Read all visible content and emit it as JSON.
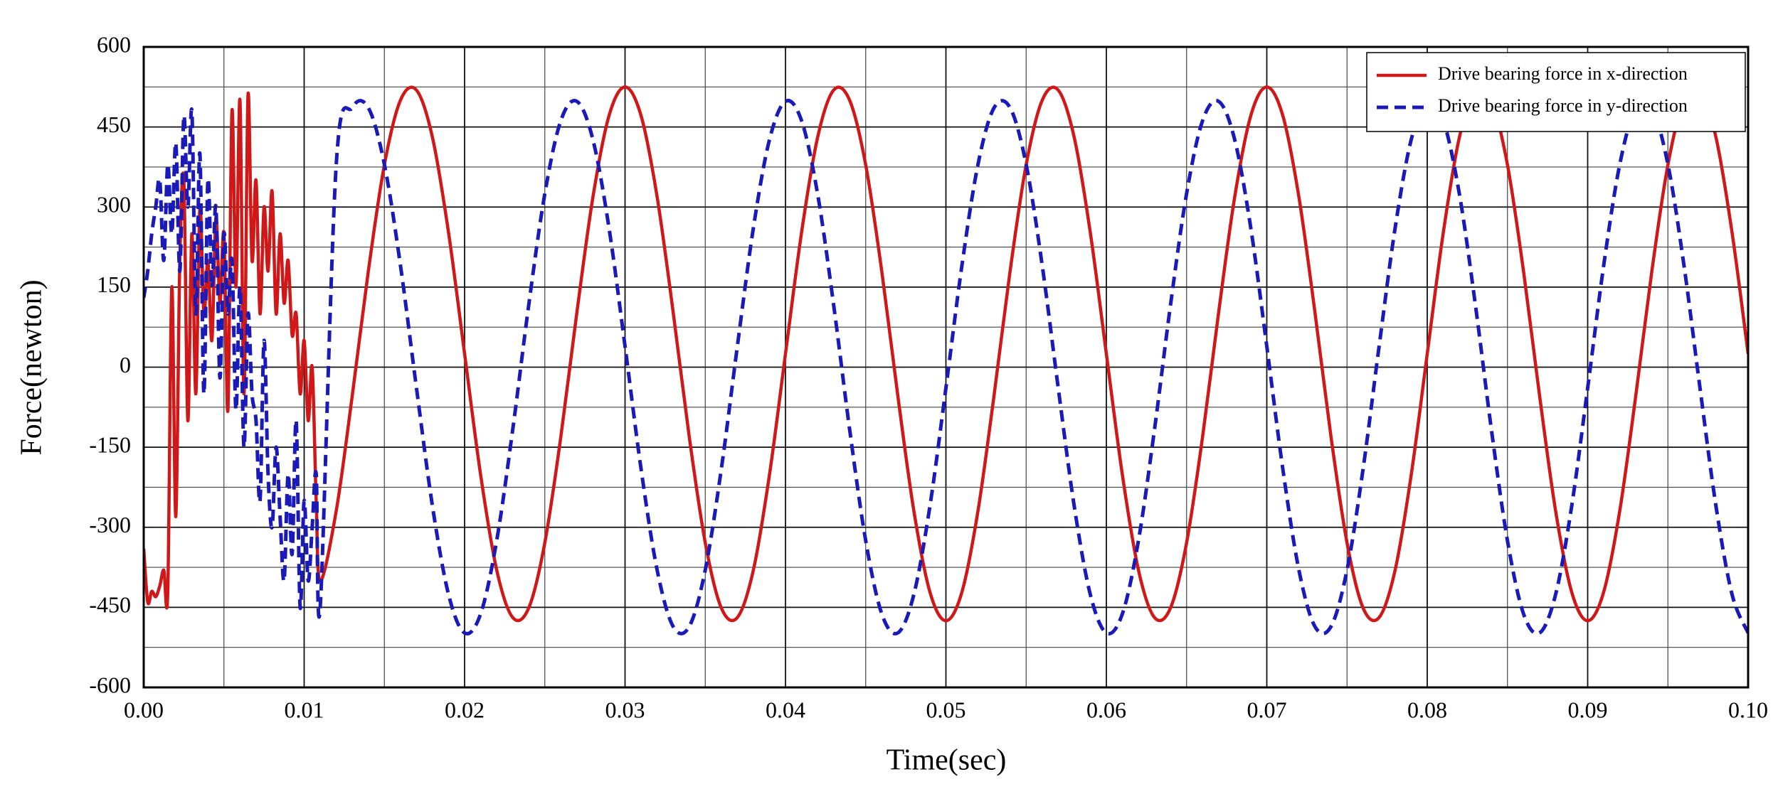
{
  "chart_data": {
    "type": "line",
    "xlabel": "Time(sec)",
    "ylabel": "Force(newton)",
    "x": [
      0,
      0.00025,
      0.0005,
      0.00075,
      0.001,
      0.00125,
      0.0015,
      0.00175,
      0.002,
      0.00225,
      0.0025,
      0.00275,
      0.003,
      0.00325,
      0.0035,
      0.00375,
      0.004,
      0.00425,
      0.0045,
      0.00475,
      0.005,
      0.00525,
      0.0055,
      0.00575,
      0.006,
      0.00625,
      0.0065,
      0.00675,
      0.007,
      0.00725,
      0.0075,
      0.00775,
      0.008,
      0.00825,
      0.0085,
      0.00875,
      0.009,
      0.00925,
      0.0095,
      0.00975,
      0.01,
      0.01025,
      0.0105,
      0.01075,
      0.011,
      0.012,
      0.013,
      0.014,
      0.015,
      0.016,
      0.017,
      0.018,
      0.019,
      0.02,
      0.021,
      0.022,
      0.023,
      0.024,
      0.025,
      0.026,
      0.027,
      0.028,
      0.029,
      0.03,
      0.031,
      0.032,
      0.033,
      0.034,
      0.035,
      0.036,
      0.037,
      0.038,
      0.039,
      0.04,
      0.041,
      0.042,
      0.043,
      0.044,
      0.045,
      0.046,
      0.047,
      0.048,
      0.049,
      0.05,
      0.051,
      0.052,
      0.053,
      0.054,
      0.055,
      0.056,
      0.057,
      0.058,
      0.059,
      0.06,
      0.061,
      0.062,
      0.063,
      0.064,
      0.065,
      0.066,
      0.067,
      0.068,
      0.069,
      0.07,
      0.071,
      0.072,
      0.073,
      0.074,
      0.075,
      0.076,
      0.077,
      0.078,
      0.079,
      0.08,
      0.081,
      0.082,
      0.083,
      0.084,
      0.085,
      0.086,
      0.087,
      0.088,
      0.089,
      0.09,
      0.091,
      0.092,
      0.093,
      0.094,
      0.095,
      0.096,
      0.097,
      0.098,
      0.099,
      0.1
    ],
    "series": [
      {
        "name": "Drive bearing force in x-direction",
        "color": "#d01818",
        "dash": false,
        "values": [
          -340,
          -440,
          -420,
          -430,
          -410,
          -380,
          -420,
          150,
          -280,
          200,
          350,
          -100,
          250,
          -50,
          300,
          100,
          200,
          50,
          280,
          120,
          250,
          -80,
          480,
          150,
          500,
          -50,
          510,
          200,
          350,
          100,
          300,
          180,
          330,
          100,
          250,
          120,
          200,
          60,
          100,
          -50,
          50,
          -100,
          0,
          -250,
          -400,
          -269,
          -53,
          180,
          379,
          500,
          519,
          430,
          252,
          25,
          -202,
          -380,
          -469,
          -451,
          -329,
          -130,
          103,
          319,
          471,
          525,
          471,
          319,
          103,
          -130,
          -329,
          -451,
          -469,
          -380,
          -202,
          25,
          252,
          430,
          519,
          500,
          379,
          180,
          -53,
          -269,
          -421,
          -475,
          -421,
          -269,
          -53,
          180,
          379,
          500,
          519,
          430,
          252,
          25,
          -202,
          -380,
          -469,
          -451,
          -329,
          -130,
          103,
          319,
          471,
          525,
          471,
          319,
          103,
          -130,
          -329,
          -451,
          -469,
          -380,
          -202,
          25,
          252,
          430,
          519,
          500,
          379,
          180,
          -53,
          -269,
          -421,
          -475,
          -421,
          -269,
          -53,
          180,
          379,
          500,
          519,
          430,
          252,
          25
        ]
      },
      {
        "name": "Drive bearing force in y-direction",
        "color": "#1a1ab8",
        "dash": true,
        "values": [
          130,
          180,
          250,
          300,
          350,
          200,
          380,
          250,
          420,
          180,
          470,
          300,
          480,
          100,
          400,
          -50,
          350,
          150,
          300,
          -20,
          250,
          100,
          200,
          -80,
          150,
          -150,
          100,
          -50,
          -100,
          -250,
          50,
          -200,
          -300,
          -150,
          -280,
          -400,
          -200,
          -350,
          -100,
          -450,
          -250,
          -400,
          -300,
          -200,
          -450,
          380,
          486,
          486,
          380,
          191,
          -39,
          -261,
          -426,
          -498,
          -462,
          -325,
          -117,
          117,
          325,
          462,
          498,
          426,
          261,
          39,
          -191,
          -380,
          -486,
          -486,
          -380,
          -191,
          39,
          261,
          426,
          498,
          462,
          325,
          117,
          -117,
          -325,
          -462,
          -498,
          -426,
          -261,
          -39,
          191,
          380,
          486,
          486,
          380,
          191,
          -39,
          -261,
          -426,
          -498,
          -462,
          -325,
          -117,
          117,
          325,
          462,
          498,
          426,
          261,
          39,
          -191,
          -380,
          -486,
          -486,
          -380,
          -191,
          39,
          261,
          426,
          498,
          462,
          325,
          117,
          -117,
          -325,
          -462,
          -498,
          -426,
          -261,
          -39,
          191,
          380,
          486,
          486,
          380,
          191,
          -39,
          -261,
          -426,
          -498
        ]
      }
    ],
    "xlim": [
      0,
      0.1
    ],
    "ylim": [
      -600,
      600
    ],
    "xticks": [
      {
        "value": 0,
        "label": "0.00"
      },
      0.01,
      0.02,
      0.03,
      0.04,
      0.05,
      0.06,
      0.07,
      0.08,
      0.09,
      {
        "value": 0.1,
        "label": "0.10"
      }
    ],
    "yticks": [
      -600,
      -450,
      -300,
      -150,
      0,
      150,
      300,
      450,
      600
    ],
    "minor_xticks": [
      0.005,
      0.015,
      0.025,
      0.035,
      0.045,
      0.055,
      0.065,
      0.075,
      0.085,
      0.095
    ],
    "minor_yticks": [
      -525,
      -375,
      -225,
      -75,
      75,
      225,
      375,
      525
    ],
    "grid": true,
    "legend": "upper right"
  }
}
